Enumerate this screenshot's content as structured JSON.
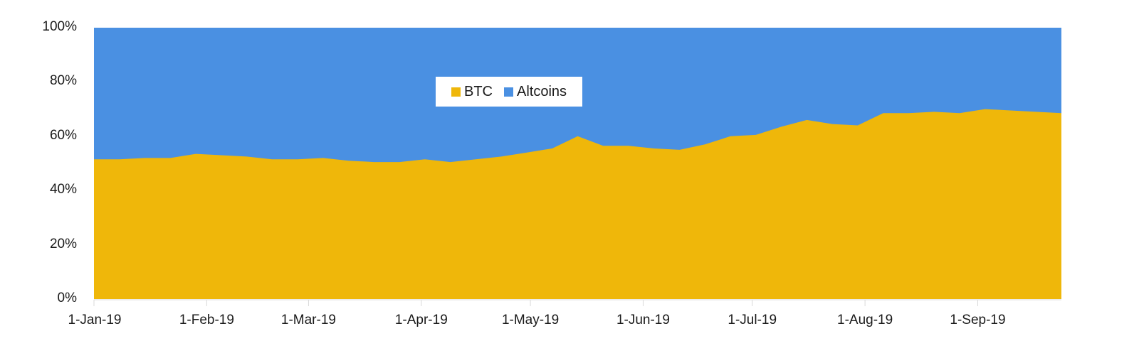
{
  "chart_data": {
    "type": "area",
    "stacked": "percent",
    "title": "",
    "xlabel": "",
    "ylabel": "",
    "ylim": [
      0,
      100
    ],
    "y_ticks": [
      "0%",
      "20%",
      "40%",
      "60%",
      "80%",
      "100%"
    ],
    "x_tick_labels": [
      "1-Jan-19",
      "1-Feb-19",
      "1-Mar-19",
      "1-Apr-19",
      "1-May-19",
      "1-Jun-19",
      "1-Jul-19",
      "1-Aug-19",
      "1-Sep-19"
    ],
    "x_tick_days": [
      0,
      31,
      59,
      90,
      120,
      151,
      181,
      212,
      243
    ],
    "x_start_day": 0,
    "x_step_days": 7,
    "legend_position": "inside-top-center",
    "grid": false,
    "series": [
      {
        "name": "BTC",
        "color": "#EFB70A",
        "values": [
          51.5,
          51.5,
          52,
          52,
          53.5,
          53,
          52.5,
          51.5,
          51.5,
          52,
          51,
          50.5,
          50.5,
          51.5,
          50.5,
          51.5,
          52.5,
          54,
          55.5,
          60,
          56.5,
          56.5,
          55.5,
          55,
          57,
          60,
          60.5,
          63.5,
          66,
          64.5,
          64,
          68.5,
          68.5,
          69,
          68.5,
          70,
          69.5,
          69,
          68.5
        ]
      },
      {
        "name": "Altcoins",
        "color": "#4A90E2",
        "values": [
          48.5,
          48.5,
          48,
          48,
          46.5,
          47,
          47.5,
          48.5,
          48.5,
          48,
          49,
          49.5,
          49.5,
          48.5,
          49.5,
          48.5,
          47.5,
          46,
          44.5,
          40,
          43.5,
          43.5,
          44.5,
          45,
          43,
          40,
          39.5,
          36.5,
          34,
          35.5,
          36,
          31.5,
          31.5,
          31,
          31.5,
          30,
          30.5,
          31,
          31.5
        ]
      }
    ]
  },
  "legend": {
    "items": [
      {
        "label": "BTC",
        "color": "#EFB70A"
      },
      {
        "label": "Altcoins",
        "color": "#4A90E2"
      }
    ]
  }
}
